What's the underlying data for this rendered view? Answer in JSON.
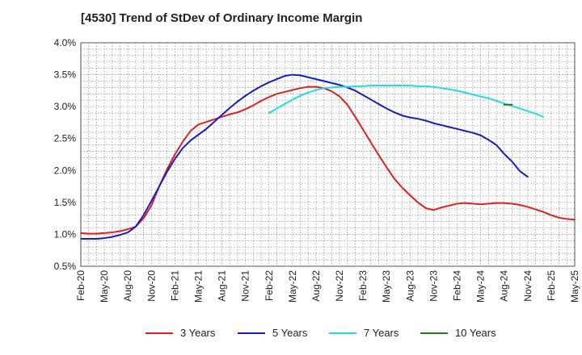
{
  "chart_data": {
    "type": "line",
    "title": "[4530]  Trend of StDev of Ordinary Income Margin",
    "xlabel": "",
    "ylabel": "",
    "x_ticks": [
      "Feb-20",
      "May-20",
      "Aug-20",
      "Nov-20",
      "Feb-21",
      "May-21",
      "Aug-21",
      "Nov-21",
      "Feb-22",
      "May-22",
      "Aug-22",
      "Nov-22",
      "Feb-23",
      "May-23",
      "Aug-23",
      "Nov-23",
      "Feb-24",
      "May-24",
      "Aug-24",
      "Nov-24",
      "Feb-25",
      "May-25"
    ],
    "y_ticks": [
      "0.5%",
      "1.0%",
      "1.5%",
      "2.0%",
      "2.5%",
      "3.0%",
      "3.5%",
      "4.0%"
    ],
    "ylim": [
      0.5,
      4.0
    ],
    "grid": true,
    "legend_position": "bottom",
    "x_unit": "months since Feb-20",
    "series": [
      {
        "name": "3 Years",
        "color": "#e0201f",
        "points": [
          [
            0,
            1.02
          ],
          [
            1,
            1.01
          ],
          [
            2,
            1.01
          ],
          [
            3,
            1.02
          ],
          [
            4,
            1.03
          ],
          [
            5,
            1.05
          ],
          [
            6,
            1.08
          ],
          [
            7,
            1.12
          ],
          [
            8,
            1.25
          ],
          [
            9,
            1.45
          ],
          [
            10,
            1.75
          ],
          [
            11,
            2.02
          ],
          [
            12,
            2.25
          ],
          [
            13,
            2.45
          ],
          [
            14,
            2.62
          ],
          [
            15,
            2.72
          ],
          [
            16,
            2.76
          ],
          [
            17,
            2.8
          ],
          [
            18,
            2.84
          ],
          [
            19,
            2.88
          ],
          [
            20,
            2.91
          ],
          [
            21,
            2.96
          ],
          [
            22,
            3.02
          ],
          [
            23,
            3.09
          ],
          [
            24,
            3.15
          ],
          [
            25,
            3.2
          ],
          [
            26,
            3.23
          ],
          [
            27,
            3.26
          ],
          [
            28,
            3.29
          ],
          [
            29,
            3.31
          ],
          [
            30,
            3.31
          ],
          [
            31,
            3.29
          ],
          [
            32,
            3.24
          ],
          [
            33,
            3.16
          ],
          [
            34,
            3.03
          ],
          [
            35,
            2.84
          ],
          [
            36,
            2.64
          ],
          [
            37,
            2.44
          ],
          [
            38,
            2.24
          ],
          [
            39,
            2.05
          ],
          [
            40,
            1.87
          ],
          [
            41,
            1.73
          ],
          [
            42,
            1.61
          ],
          [
            43,
            1.5
          ],
          [
            44,
            1.41
          ],
          [
            45,
            1.38
          ],
          [
            46,
            1.42
          ],
          [
            47,
            1.45
          ],
          [
            48,
            1.48
          ],
          [
            49,
            1.49
          ],
          [
            50,
            1.48
          ],
          [
            51,
            1.47
          ],
          [
            52,
            1.48
          ],
          [
            53,
            1.49
          ],
          [
            54,
            1.49
          ],
          [
            55,
            1.48
          ],
          [
            56,
            1.46
          ],
          [
            57,
            1.43
          ],
          [
            58,
            1.39
          ],
          [
            59,
            1.35
          ],
          [
            60,
            1.3
          ],
          [
            61,
            1.26
          ],
          [
            62,
            1.24
          ],
          [
            63,
            1.23
          ]
        ]
      },
      {
        "name": "5 Years",
        "color": "#1a1acc",
        "points": [
          [
            0,
            0.93
          ],
          [
            1,
            0.93
          ],
          [
            2,
            0.93
          ],
          [
            3,
            0.94
          ],
          [
            4,
            0.96
          ],
          [
            5,
            0.99
          ],
          [
            6,
            1.03
          ],
          [
            7,
            1.12
          ],
          [
            8,
            1.3
          ],
          [
            9,
            1.52
          ],
          [
            10,
            1.75
          ],
          [
            11,
            1.98
          ],
          [
            12,
            2.18
          ],
          [
            13,
            2.35
          ],
          [
            14,
            2.47
          ],
          [
            15,
            2.56
          ],
          [
            16,
            2.65
          ],
          [
            17,
            2.76
          ],
          [
            18,
            2.87
          ],
          [
            19,
            2.98
          ],
          [
            20,
            3.08
          ],
          [
            21,
            3.17
          ],
          [
            22,
            3.25
          ],
          [
            23,
            3.32
          ],
          [
            24,
            3.38
          ],
          [
            25,
            3.43
          ],
          [
            26,
            3.48
          ],
          [
            27,
            3.5
          ],
          [
            28,
            3.49
          ],
          [
            29,
            3.46
          ],
          [
            30,
            3.43
          ],
          [
            31,
            3.4
          ],
          [
            32,
            3.37
          ],
          [
            33,
            3.34
          ],
          [
            34,
            3.3
          ],
          [
            35,
            3.25
          ],
          [
            36,
            3.18
          ],
          [
            37,
            3.11
          ],
          [
            38,
            3.04
          ],
          [
            39,
            2.97
          ],
          [
            40,
            2.91
          ],
          [
            41,
            2.86
          ],
          [
            42,
            2.83
          ],
          [
            43,
            2.81
          ],
          [
            44,
            2.78
          ],
          [
            45,
            2.74
          ],
          [
            46,
            2.71
          ],
          [
            47,
            2.68
          ],
          [
            48,
            2.65
          ],
          [
            49,
            2.62
          ],
          [
            50,
            2.59
          ],
          [
            51,
            2.55
          ],
          [
            52,
            2.48
          ],
          [
            53,
            2.4
          ],
          [
            54,
            2.26
          ],
          [
            55,
            2.14
          ],
          [
            56,
            1.99
          ],
          [
            57,
            1.9
          ]
        ]
      },
      {
        "name": "7 Years",
        "color": "#22dddd",
        "points": [
          [
            24,
            2.9
          ],
          [
            25,
            2.97
          ],
          [
            26,
            3.04
          ],
          [
            27,
            3.11
          ],
          [
            28,
            3.17
          ],
          [
            29,
            3.22
          ],
          [
            30,
            3.26
          ],
          [
            31,
            3.29
          ],
          [
            32,
            3.3
          ],
          [
            33,
            3.31
          ],
          [
            34,
            3.31
          ],
          [
            35,
            3.32
          ],
          [
            36,
            3.32
          ],
          [
            37,
            3.33
          ],
          [
            38,
            3.33
          ],
          [
            39,
            3.33
          ],
          [
            40,
            3.33
          ],
          [
            41,
            3.33
          ],
          [
            42,
            3.33
          ],
          [
            43,
            3.32
          ],
          [
            44,
            3.32
          ],
          [
            45,
            3.31
          ],
          [
            46,
            3.29
          ],
          [
            47,
            3.27
          ],
          [
            48,
            3.25
          ],
          [
            49,
            3.22
          ],
          [
            50,
            3.19
          ],
          [
            51,
            3.16
          ],
          [
            52,
            3.13
          ],
          [
            53,
            3.09
          ],
          [
            54,
            3.05
          ],
          [
            55,
            3.01
          ],
          [
            56,
            2.97
          ],
          [
            57,
            2.93
          ],
          [
            58,
            2.89
          ],
          [
            59,
            2.84
          ]
        ]
      },
      {
        "name": "10 Years",
        "color": "#1f7a1f",
        "points": [
          [
            54,
            3.03
          ],
          [
            55,
            3.03
          ]
        ]
      }
    ]
  }
}
